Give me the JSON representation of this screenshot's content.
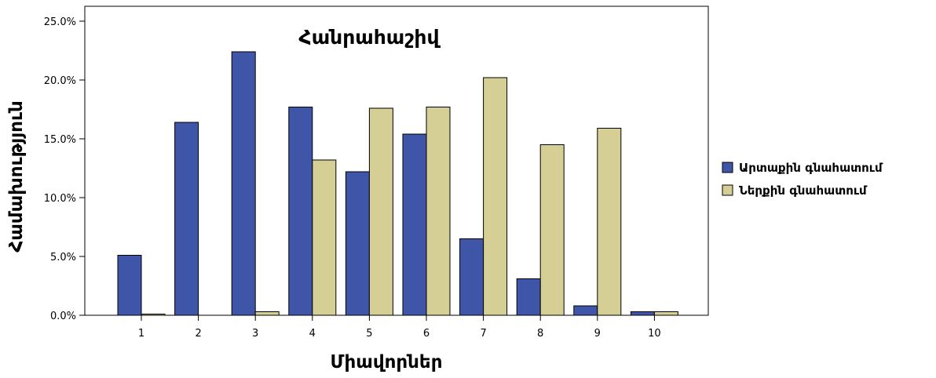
{
  "chart_data": {
    "type": "bar",
    "title": "Հանրահաշիվ",
    "xlabel": "Միավորներ",
    "ylabel": "Համախությյուն",
    "categories": [
      "1",
      "2",
      "3",
      "4",
      "5",
      "6",
      "7",
      "8",
      "9",
      "10"
    ],
    "ylim": [
      0,
      25
    ],
    "yticks": [
      "0.0%",
      "5.0%",
      "10.0%",
      "15.0%",
      "20.0%",
      "25.0%"
    ],
    "ytick_values": [
      0,
      5,
      10,
      15,
      20,
      25
    ],
    "grid": false,
    "legend_position": "right",
    "series": [
      {
        "name": "Արտաքին գնահատում",
        "color": "#3f55a8",
        "values": [
          5.1,
          16.4,
          22.4,
          17.7,
          12.2,
          15.4,
          6.5,
          3.1,
          0.8,
          0.3
        ]
      },
      {
        "name": "Ներքին գնահատում",
        "color": "#d6cf95",
        "values": [
          0.1,
          0.0,
          0.3,
          13.2,
          17.6,
          17.7,
          20.2,
          14.5,
          15.9,
          0.3
        ]
      }
    ]
  }
}
